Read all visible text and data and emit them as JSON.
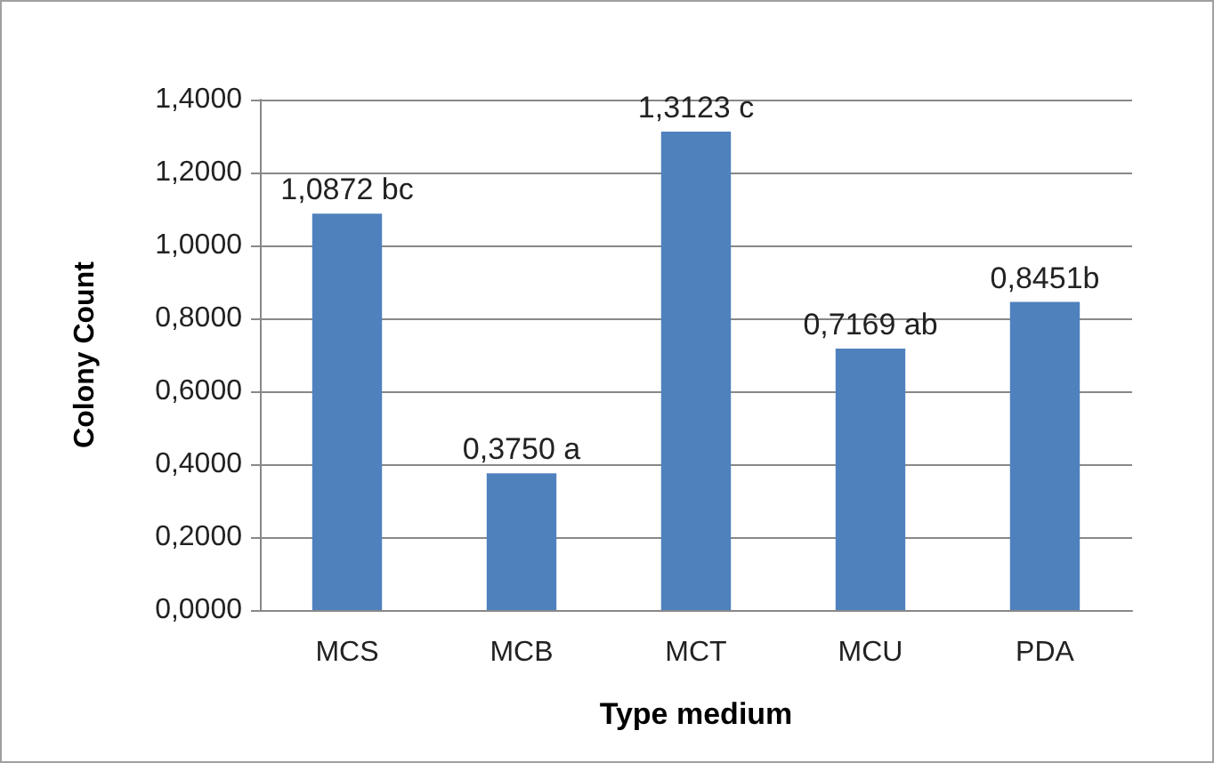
{
  "chart_data": {
    "type": "bar",
    "xlabel": "Type medium",
    "ylabel": "Colony Count",
    "categories": [
      "MCS",
      "MCB",
      "MCT",
      "MCU",
      "PDA"
    ],
    "values": [
      1.0872,
      0.375,
      1.3123,
      0.7169,
      0.8451
    ],
    "value_labels": [
      "1,0872 bc",
      "0,3750 a",
      "1,3123 c",
      "0,7169 ab",
      "0,8451b"
    ],
    "color": "#4f81bd",
    "ylim": [
      0,
      1.4
    ],
    "yticks": [
      {
        "value": 0,
        "label": "0,0000"
      },
      {
        "value": 0.2,
        "label": "0,2000"
      },
      {
        "value": 0.4,
        "label": "0,4000"
      },
      {
        "value": 0.6,
        "label": "0,6000"
      },
      {
        "value": 0.8,
        "label": "0,8000"
      },
      {
        "value": 1,
        "label": "1,0000"
      },
      {
        "value": 1.2,
        "label": "1,2000"
      },
      {
        "value": 1.4,
        "label": "1,4000"
      }
    ],
    "grid": "y"
  }
}
